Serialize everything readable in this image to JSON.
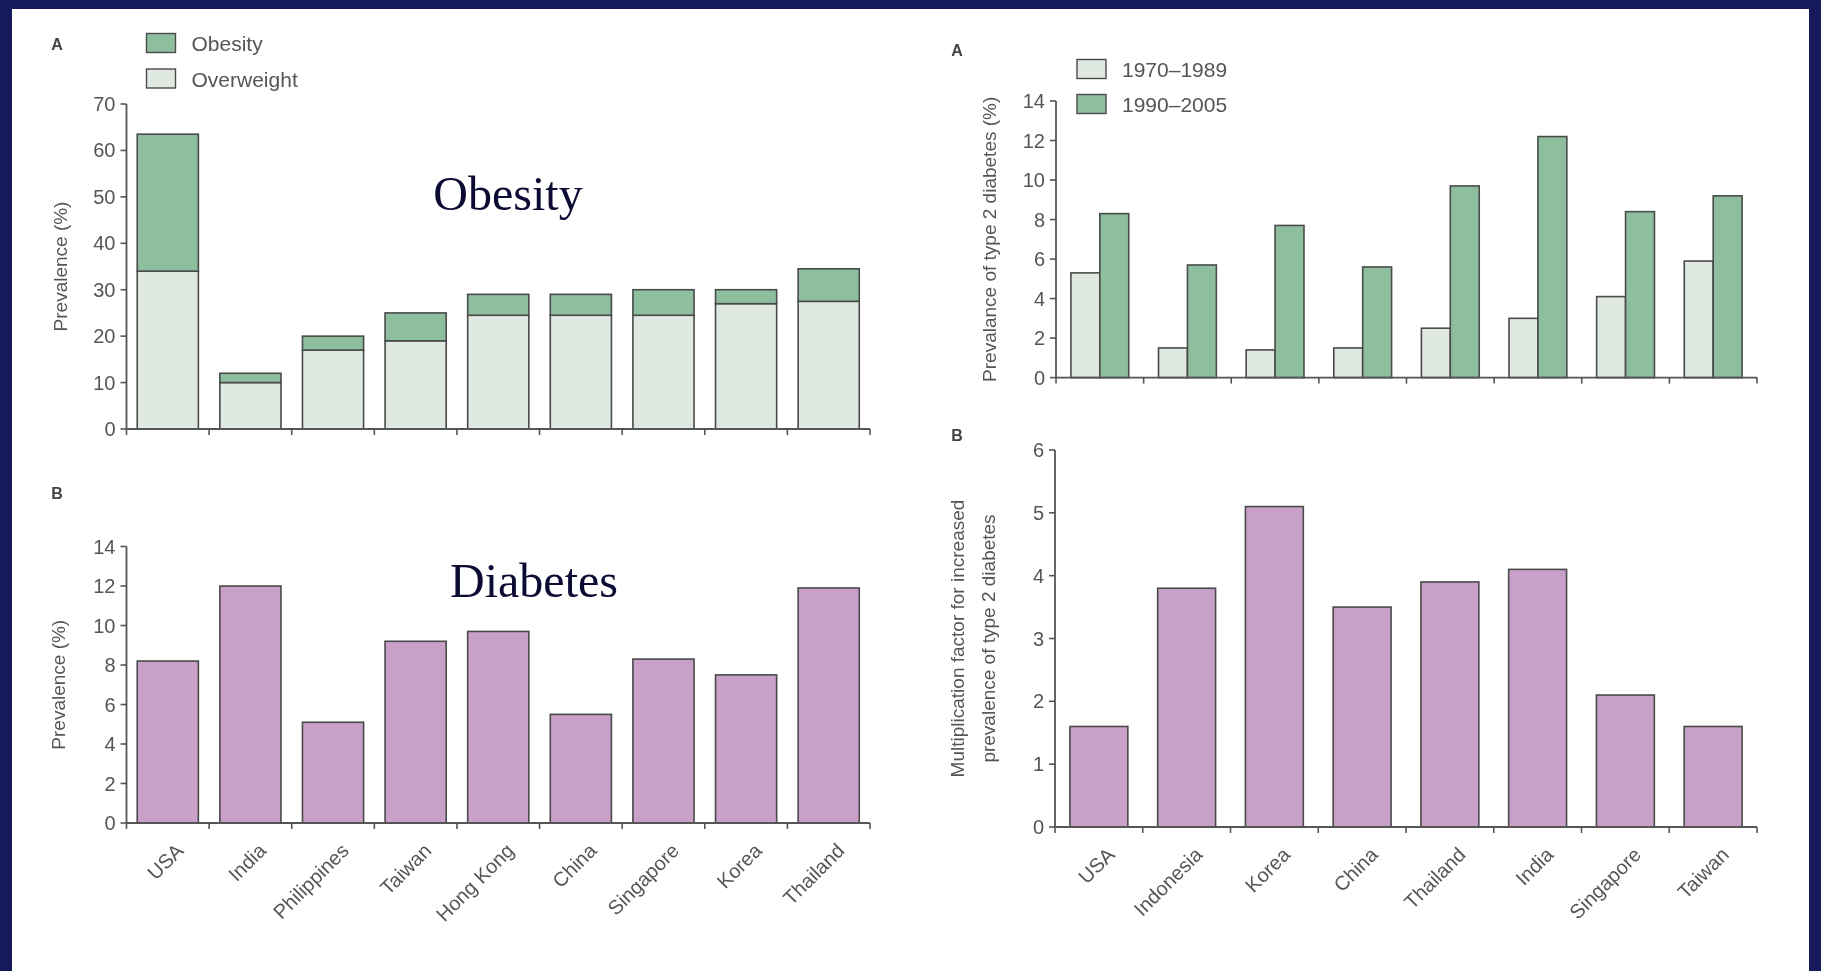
{
  "chart_data": [
    {
      "type": "bar",
      "title": "A",
      "annotations": [
        "Obesity"
      ],
      "ylabel": "Prevalence (%)",
      "categories": [
        null,
        null,
        null,
        null,
        null,
        null,
        null,
        null,
        null
      ],
      "stacked": true,
      "series": [
        {
          "name": "Overweight",
          "color": "#dfe9e1",
          "values": [
            34,
            10,
            17,
            19,
            24.5,
            24.5,
            24.5,
            27,
            27.5
          ]
        },
        {
          "name": "Obesity",
          "color": "#8dbf9f",
          "values": [
            29.5,
            2,
            3,
            6,
            4.5,
            4.5,
            5.5,
            3,
            7
          ]
        }
      ],
      "ylim": [
        0,
        70
      ],
      "yticks": [
        0,
        10,
        20,
        30,
        40,
        50,
        60,
        70
      ],
      "legend": "top left",
      "tick_labels": "y"
    },
    {
      "type": "bar",
      "title": "A",
      "ylabel": "Prevalance of type 2 diabetes (%)",
      "categories": [
        null,
        null,
        null,
        null,
        null,
        null,
        null,
        null
      ],
      "series": [
        {
          "name": "1970–1989",
          "color": "#dfe9e1",
          "values": [
            5.3,
            1.5,
            1.4,
            1.5,
            2.5,
            3,
            4.1,
            5.9
          ]
        },
        {
          "name": "1990–2005",
          "color": "#8dbf9f",
          "values": [
            8.3,
            5.7,
            7.7,
            5.6,
            9.7,
            12.2,
            8.4,
            9.2
          ]
        }
      ],
      "ylim": [
        0,
        14
      ],
      "yticks": [
        0,
        2,
        4,
        6,
        8,
        10,
        12,
        14
      ],
      "legend": "top left",
      "tick_labels": "y"
    },
    {
      "type": "bar",
      "title": "B",
      "annotations": [
        "Diabetes"
      ],
      "ylabel": "Prevalence (%)",
      "categories": [
        "USA",
        "India",
        "Philippines",
        "Taiwan",
        "Hong Kong",
        "China",
        "Singapore",
        "Korea",
        "Thailand"
      ],
      "values": [
        8.2,
        12,
        5.1,
        9.2,
        9.7,
        5.5,
        8.3,
        7.5,
        11.9
      ],
      "color": "#c8a0c8",
      "ylim": [
        0,
        14
      ],
      "yticks": [
        0,
        2,
        4,
        6,
        8,
        10,
        12,
        14
      ]
    },
    {
      "type": "bar",
      "title": "B",
      "ylabel": "Multiplication factor for increased\nprevalence of type 2 diabetes",
      "categories": [
        "USA",
        "Indonesia",
        "Korea",
        "China",
        "Thailand",
        "India",
        "Singapore",
        "Taiwan"
      ],
      "values": [
        1.6,
        3.8,
        5.1,
        3.5,
        3.9,
        4.1,
        2.1,
        1.6
      ],
      "color": "#c8a0c8",
      "ylim": [
        0,
        6
      ],
      "yticks": [
        0,
        1,
        2,
        3,
        4,
        5,
        6
      ]
    }
  ]
}
